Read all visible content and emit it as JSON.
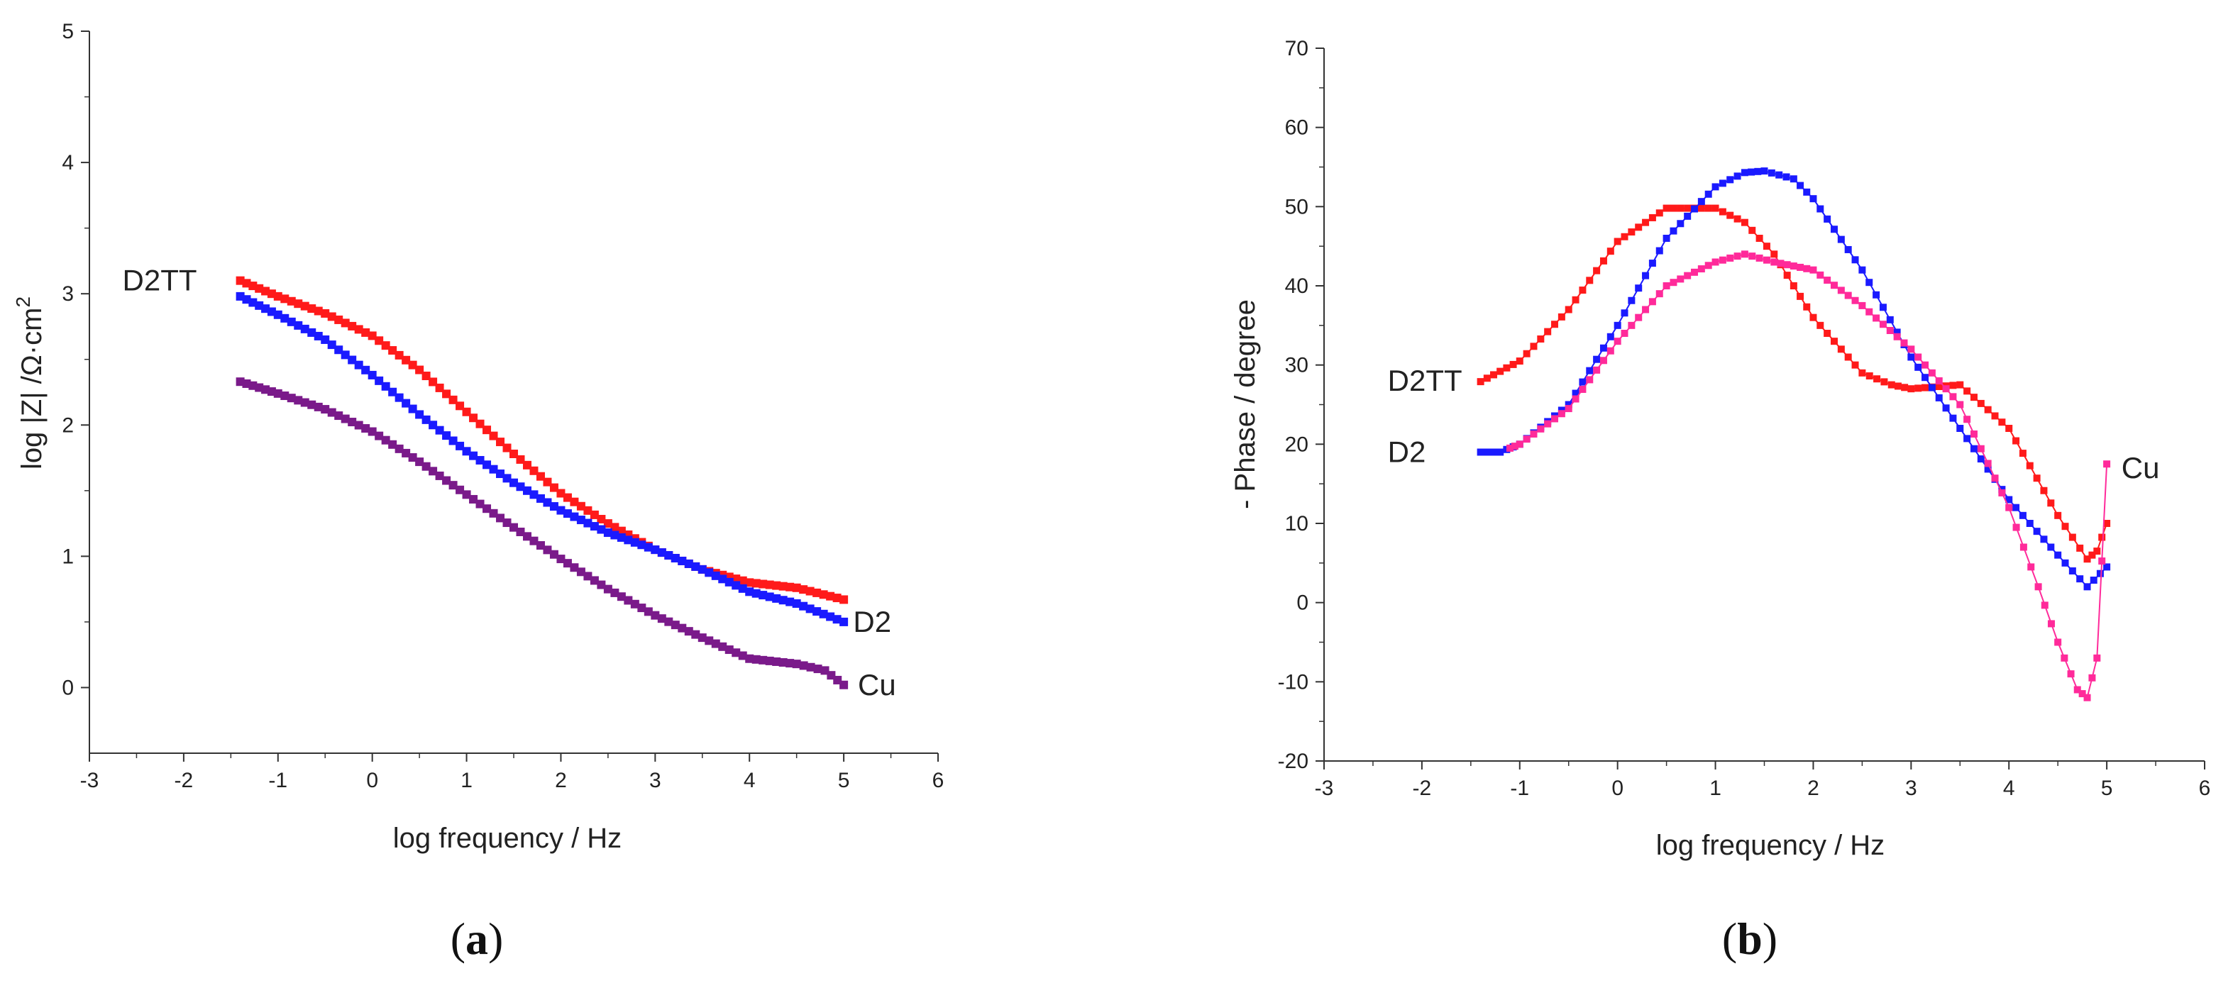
{
  "chart_data": [
    {
      "type": "scatter",
      "panel_label": "a",
      "xlabel": "log frequency / Hz",
      "ylabel": "log |Z| /Ω·cm",
      "ylabel_superscript": "2",
      "xlim": [
        -3,
        6
      ],
      "ylim": [
        -0.5,
        5
      ],
      "xticks": [
        "-3",
        "-2",
        "-1",
        "0",
        "1",
        "2",
        "3",
        "4",
        "5",
        "6"
      ],
      "yticks": [
        "0",
        "1",
        "2",
        "3",
        "4",
        "5"
      ],
      "series": [
        {
          "name": "D2TT",
          "color": "#ff1a1a",
          "x": [
            -1.4,
            -1,
            -0.5,
            0,
            0.5,
            1,
            1.5,
            2,
            2.5,
            3,
            3.5,
            4,
            4.5,
            5
          ],
          "y": [
            3.1,
            2.98,
            2.85,
            2.68,
            2.42,
            2.1,
            1.78,
            1.48,
            1.25,
            1.05,
            0.9,
            0.8,
            0.76,
            0.67
          ]
        },
        {
          "name": "D2",
          "color": "#1a1aff",
          "x": [
            -1.4,
            -1,
            -0.5,
            0,
            0.5,
            1,
            1.5,
            2,
            2.5,
            3,
            3.5,
            4,
            4.5,
            5
          ],
          "y": [
            2.98,
            2.84,
            2.65,
            2.38,
            2.08,
            1.8,
            1.56,
            1.35,
            1.18,
            1.05,
            0.9,
            0.73,
            0.64,
            0.5
          ]
        },
        {
          "name": "Cu",
          "color": "#7a1a8a",
          "x": [
            -1.4,
            -1,
            -0.5,
            0,
            0.5,
            1,
            1.5,
            2,
            2.5,
            3,
            3.5,
            4,
            4.5,
            4.8,
            5
          ],
          "y": [
            2.33,
            2.24,
            2.12,
            1.95,
            1.72,
            1.47,
            1.22,
            0.98,
            0.75,
            0.55,
            0.38,
            0.22,
            0.18,
            0.13,
            0.02
          ]
        }
      ],
      "annotations": [
        {
          "text": "D2TT",
          "x": -2.65,
          "y": 3.1
        },
        {
          "text": "D2",
          "x": 5.1,
          "y": 0.5
        },
        {
          "text": "Cu",
          "x": 5.15,
          "y": 0.02
        }
      ]
    },
    {
      "type": "scatter",
      "panel_label": "b",
      "xlabel": "log frequency / Hz",
      "ylabel": "- Phase / degree",
      "xlim": [
        -3,
        6
      ],
      "ylim": [
        -20,
        70
      ],
      "xticks": [
        "-3",
        "-2",
        "-1",
        "0",
        "1",
        "2",
        "3",
        "4",
        "5",
        "6"
      ],
      "yticks": [
        "-20",
        "-10",
        "0",
        "10",
        "20",
        "30",
        "40",
        "50",
        "60",
        "70"
      ],
      "series": [
        {
          "name": "D2TT",
          "color": "#ff1a1a",
          "x": [
            -1.4,
            -1.0,
            -0.5,
            0.0,
            0.5,
            1.0,
            1.3,
            1.6,
            2.0,
            2.5,
            2.8,
            3.0,
            3.5,
            4.0,
            4.5,
            4.8,
            4.9,
            5.0
          ],
          "y": [
            27.9,
            30.5,
            37.0,
            45.6,
            49.8,
            49.8,
            48.0,
            44.0,
            36.0,
            29.0,
            27.5,
            27.0,
            27.5,
            22.0,
            11.0,
            5.5,
            6.5,
            10.0
          ]
        },
        {
          "name": "D2",
          "color": "#1a1aff",
          "x": [
            -1.4,
            -1.2,
            -1.0,
            -0.5,
            0.0,
            0.5,
            1.0,
            1.3,
            1.5,
            1.8,
            2.0,
            2.5,
            3.0,
            3.5,
            4.0,
            4.5,
            4.8,
            5.0
          ],
          "y": [
            19.0,
            19.0,
            20.0,
            25.0,
            35.0,
            46.0,
            52.5,
            54.3,
            54.5,
            53.5,
            51.0,
            42.0,
            31.0,
            22.0,
            13.0,
            6.0,
            2.0,
            4.5
          ]
        },
        {
          "name": "Cu",
          "color": "#ff2a9a",
          "x": [
            -1.1,
            -1.0,
            -0.5,
            0.0,
            0.5,
            1.0,
            1.3,
            1.6,
            2.0,
            2.5,
            3.0,
            3.5,
            4.0,
            4.3,
            4.5,
            4.7,
            4.8,
            4.9,
            5.0
          ],
          "y": [
            19.5,
            20.0,
            24.5,
            33.0,
            40.0,
            43.0,
            44.0,
            43.0,
            42.0,
            37.5,
            32.0,
            25.0,
            12.0,
            2.0,
            -5.0,
            -11.0,
            -12.0,
            -7.0,
            17.5
          ]
        }
      ],
      "annotations": [
        {
          "text": "D2TT",
          "x": -2.35,
          "y": 28
        },
        {
          "text": "D2",
          "x": -2.35,
          "y": 19
        },
        {
          "text": "Cu",
          "x": 5.15,
          "y": 17
        }
      ]
    }
  ]
}
